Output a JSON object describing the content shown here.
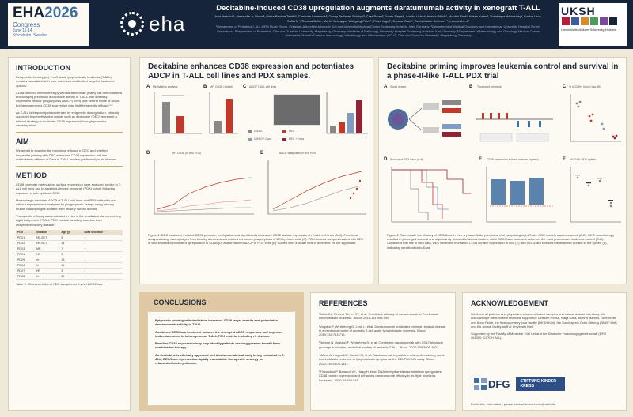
{
  "header": {
    "congress_name": "EHA",
    "congress_year": "2026",
    "congress_label": "Congress",
    "congress_dates": "June 11-14",
    "congress_city": "Stockholm, Sweden",
    "society_logo": "eha",
    "poster_title": "Decitabine-induced CD38 upregulation augments daratumumab activity in xenograft T-ALL",
    "authors": "Julia Heinrich¹, Alexander A. Wurm², Maria-Pauline Tawfik², Charlotte Lammerts³, Cenny Taslimah Siddiqui³, Cara Bruns³, Jonas Siegel², Annika Linke⁴, Hanna Pillich⁴, Monika Ebel⁴, Kristin Kotter¹, Dominique Wesselsky¹, Corina Lenz, Sofiia M¹, Thomas Beiter, Martin Schrappe, Wolfgang Peter⁵, Peter Vogel⁵, Gunnar Cario¹, Denis Martin Schewe⁶·⁷, Lennart Lenk¹",
    "affiliations": "¹Department of Pediatrics I, ALL-BFM Study Group, Christian-Albrechts University Kiel and University Medical Center Schleswig-Holstein, Kiel, Germany; ²Department of Medical Oncology and Hematology, University Hospital Zurich, Switzerland; ³Department of Pediatrics, Otto-von-Guericke University, Magdeburg, Germany; ⁴Institute of Pathology, University Hospital Schleswig-Holstein, Kiel, Germany; ⁵Department of Hematology and Oncology, Medical Center Mannheim; ⁶Health Campus Immunology, Infectiology and Inflammation (GC-I³), Otto-von-Guericke University, Magdeburg, Germany",
    "uksh_logo": "UKSH",
    "uksh_sub": "Universitätsklinikum Schleswig-Holstein"
  },
  "intro": {
    "heading": "INTRODUCTION",
    "paragraphs": [
      "Relapsed/refractory (r/r) T-cell acute lymphoblastic leukemia (T-ALL) remains associated with poor outcomes and limited targeted treatment options.",
      "CD38-directed immunotherapy with daratumumab (Dara) has demonstrated encouraging preclinical and clinical activity in T-ALL with antibody-dependent cellular phagocytosis (ADCP) being one central mode of action, but heterogeneous CD38 expression may limit therapeutic efficacy.¹·²",
      "As T-ALL is frequently characterized by epigenetic dysregulation, clinically approved hypomethylating agents such as decitabine (DEC) represent a rational strategy to modulate CD38 expression through promoter demethylation."
    ]
  },
  "aim": {
    "heading": "AIM",
    "text": "We aimed to examine the preclinical efficacy of DEC and whether sequential priming with DEC enhances CD38 expression and the antileukemic efficacy of Dara in T-ALL models, particularly in r/r disease."
  },
  "method": {
    "heading": "METHOD",
    "paragraphs": [
      "CD38 promoter methylation, surface expression were analyzed in vitro in T-ALL cell lines and in a patient-derived xenograft (PDX) cohort following exposure to sub-cytotoxic DEC.",
      "Macrophage-mediated ADCP of T-ALL cell lines and PDX cells with and without exposure was analyzed by phagocytosis assays using primary murine macrophages isolated from healthy human donors.",
      "Therapeutic efficacy was evaluated in vivo in the preclinical trial comprising eight independent T-ALL PDX models including samples from relapsed/refractory disease."
    ],
    "table_headers": [
      "PDX",
      "Stratum",
      "Age (y)",
      "Dara sensitive"
    ],
    "table_rows": [
      [
        "PDX1",
        "HR-SCT",
        "5",
        "+"
      ],
      [
        "PDX2",
        "HR-SCT",
        "14",
        "-"
      ],
      [
        "PDX3",
        "MR",
        "7",
        "+"
      ],
      [
        "PDX4",
        "HR",
        "9",
        "+"
      ],
      [
        "PDX5",
        "r/r",
        "16",
        "-"
      ],
      [
        "PDX6",
        "r/r",
        "11",
        "+"
      ],
      [
        "PDX7",
        "HR",
        "3",
        "-"
      ],
      [
        "PDX8",
        "r/r",
        "12",
        "+"
      ]
    ],
    "table_caption": "Table 1: Characteristics of PDX samples for in vivo DEC/Dara."
  },
  "fig1": {
    "heading": "Decitabine enhances CD38 expression and potentiates ADCP in T-ALL cell lines and PDX samples.",
    "panel_labels": [
      "A",
      "B",
      "C",
      "D",
      "E"
    ],
    "panel_titles": [
      "Methylation analysis",
      "MFI CD38 (Jurkat)",
      "ADCP T-ALL cell lines",
      "ADCP PDX",
      "MFI CD38 (in vivo PDX)",
      "ADCP analysis in in vivo PDX"
    ],
    "legend": [
      "DMSO",
      "DEC",
      "DMSO + Dara",
      "DEC + Dara"
    ],
    "caption": "Figure 1: DEC treatment induced CD38 promoter methylation and significantly increased CD38 surface expression in T-ALL cell lines (A-B). Functional analyses using macrophages from healthy donors demonstrated enhanced phagocytosis of DEC-primed cells (C). PDX-derived samples treated with DEC in vivo showed a consistent upregulation of CD38 (D) and enhanced ADCP of PDX cells (E). Dotted lines indicate limit of detection; ns not significant."
  },
  "fig2": {
    "heading": "Decitabine priming improves leukemia control and survival in a phase-II-like T-ALL PDX trial",
    "panel_labels": [
      "A",
      "B",
      "C",
      "D",
      "E",
      "F"
    ],
    "panel_titles": [
      "Study design",
      "Treatment schedule",
      "% hCD45+ blood (day 35)",
      "Survival of PDX mice (n=8)",
      "CD38 expression in bone marrow (spleen)",
      "hCD45+ PDX spleen"
    ],
    "legend": [
      "DMSO",
      "DEC",
      "Dara",
      "DEC + Dara"
    ],
    "caption": "Figure 2: To evaluate the efficacy of DEC/Dara in vivo, a phase-II-like preclinical trial comprising eight T-ALL PDX models was conducted (A-B). DEC monotherapy resulted in prolonged survival and significantly reduced leukemia burden, while DEC/Dara treatment achieved the most pronounced leukemia control (C-D). Consistent with the in vitro data, DEC treatment increased CD38 surface expression in vivo (E) and DEC/Dara reduced the leukemic burden in the spleen (F), indicating sensitization to Dara."
  },
  "conclusions": {
    "heading": "CONCLUSIONS",
    "items": [
      "Epigenetic priming with decitabine increases CD38 target density and potentiates daratumumab activity in T-ALL.",
      "Combined DEC/Dara treatment induces the strongest ADCP responses and improves leukemia control in heterogeneous T-ALL PDX models, including r/r disease.",
      "Baseline CD38 expression may help identify patients deriving greatest benefit from combination therapy.",
      "As decitabine is clinically approved and daratumumab is already being evaluated in T-ALL, DEC/Dara represents a rapidly translatable therapeutic strategy for relapsed/refractory disease."
    ]
  },
  "references": {
    "heading": "REFERENCES",
    "items": [
      "¹Bride KL, Vincent TL, Im SY, et al. Preclinical efficacy of daratumumab in T-cell acute lymphoblastic leukemia. Blood. 2018;131:995-999.",
      "²Vogiatzi F, Winterberg D, Lenk L, et al. Daratumumab eradicates minimal residual disease in a preclinical model of pediatric T-cell acute lymphoblastic leukemia. Blood. 2019;134:713-716.",
      "³Nehme N, Vogiatzi F, Winterberg D, et al. Combining daratumumab with CD47 blockade prolongs survival in preclinical models of pediatric T-ALL. Blood. 2022;139:3009-3021.",
      "⁴Wurm A, Hogan LW, Gunkel M, et al. Daratumumab in pediatric relapsed/refractory acute lymphoblastic leukemia or lymphoblastic lymphoma: the DELPHINUS study. Blood. 2022;139:1803-1817.",
      "⁵Timoudiou P, Baracco VK, Haag H, et al. DNA methyltransferase inhibition upregulates CD38 protein expression and enhances daratumumab efficacy in multiple myeloma. Leukemia. 2020;34:938-941."
    ]
  },
  "acknowledgement": {
    "heading": "ACKNOWLEDGEMENT",
    "paragraphs": [
      "We thank all patients and physicians who contributed samples and clinical data to this study. We acknowledge the excellent technical support by Ülrieken Reese, Katja Kolla, Marina Martins, Gitte Woltr and Anna Peich, the flow cytometry core facility (UKSH Kiel), the Sonderpreis Ochs Stiftung (BMBF Kiel) and the animal facility staff at University Kiel.",
      "Supported by the Faculty of Medicine, Kiel Uni and the Deutsche Forschungsgemeinschaft (DFG 461000, CATCH ALL)."
    ],
    "logos": [
      "DFG",
      "STIFTUNG KINDER KREBS"
    ],
    "contact": "For further information, please contact lennart.lenk@uksh.de"
  },
  "colors": {
    "navy": "#16243a",
    "accent": "#3d6fa0",
    "tan": "#e0c9a2",
    "dmso": "#888888",
    "dec": "#c0392b"
  }
}
